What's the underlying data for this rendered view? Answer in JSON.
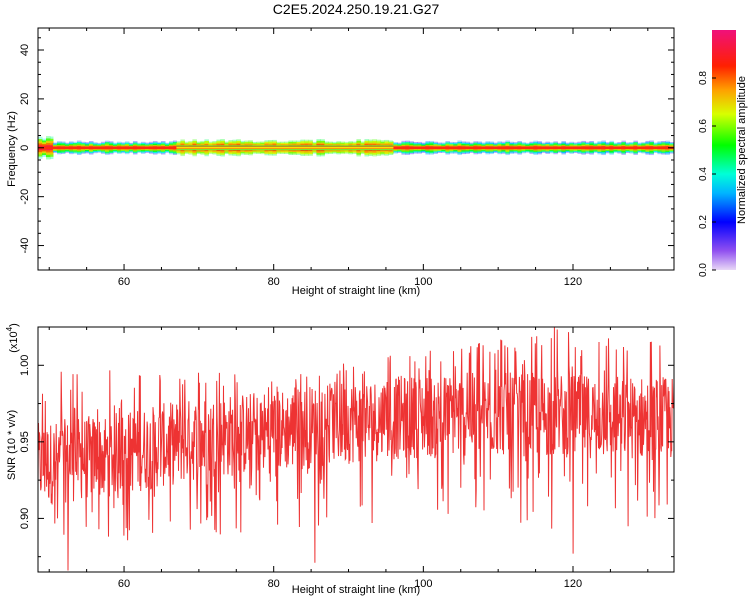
{
  "title": "C2E5.2024.250.19.21.G27",
  "colors": {
    "signal_red": "#ee3333",
    "axis": "#000000",
    "background": "#ffffff"
  },
  "chart_data": [
    {
      "type": "heatmap",
      "title": "C2E5.2024.250.19.21.G27",
      "xlabel": "Height of straight line (km)",
      "ylabel": "Frequency (Hz)",
      "xlim": [
        48.5,
        133.5
      ],
      "ylim": [
        -50,
        49
      ],
      "x_ticks": [
        "60",
        "80",
        "100",
        "120"
      ],
      "x_tick_values": [
        60,
        80,
        100,
        120
      ],
      "y_ticks": [
        "40",
        "20",
        "0",
        "-20",
        "-40"
      ],
      "y_tick_values": [
        40,
        20,
        0,
        -20,
        -40
      ],
      "grid": false,
      "colorbar": {
        "label": "Normalized spectral amplitude",
        "ticks": [
          "0.0",
          "0.2",
          "0.4",
          "0.6",
          "0.8"
        ],
        "tick_values": [
          0.0,
          0.2,
          0.4,
          0.6,
          0.8
        ],
        "range": [
          0,
          1
        ],
        "colormap": "rainbow (purple-blue-cyan-green-yellow-red-magenta)"
      },
      "ridge": {
        "frequency_hz": 0,
        "core_amplitude": 1.0,
        "band_segments": [
          {
            "x": [
              48.5,
              50.5
            ],
            "half_width_hz": 4.5,
            "amplitude": 0.7
          },
          {
            "x": [
              50.5,
              67
            ],
            "half_width_hz": 2.5,
            "amplitude": 0.95
          },
          {
            "x": [
              67,
              96
            ],
            "half_width_hz": 3.0,
            "amplitude": 0.6
          },
          {
            "x": [
              96,
              133.5
            ],
            "half_width_hz": 2.5,
            "amplitude": 0.95
          }
        ]
      }
    },
    {
      "type": "line",
      "xlabel": "Height of straight line (km)",
      "ylabel": "SNR (10 * v/v)",
      "y_multiplier": "(x10^4)",
      "multiplier_base": "x10",
      "multiplier_exp": "4",
      "xlim": [
        48.5,
        133.5
      ],
      "ylim": [
        0.865,
        1.025
      ],
      "x_ticks": [
        "60",
        "80",
        "100",
        "120"
      ],
      "x_tick_values": [
        60,
        80,
        100,
        120
      ],
      "y_ticks": [
        "1.00",
        "0.95",
        "0.90"
      ],
      "y_tick_values": [
        1.0,
        0.95,
        0.9
      ],
      "grid": false,
      "series": [
        {
          "color": "#ee3333",
          "x_start": 48.5,
          "x_end": 133.5,
          "trend_x": [
            48.5,
            60,
            70,
            80,
            90,
            100,
            110,
            120,
            133.5
          ],
          "trend_y": [
            0.935,
            0.943,
            0.952,
            0.957,
            0.963,
            0.967,
            0.968,
            0.967,
            0.965
          ],
          "envelope_max": [
            0.998,
            0.997,
            1.0,
            0.999,
            1.005,
            1.012,
            1.02,
            1.025,
            1.015
          ],
          "envelope_min": [
            0.875,
            0.884,
            0.888,
            0.89,
            0.895,
            0.899,
            0.9,
            0.89,
            0.888
          ],
          "notable_points": [
            {
              "x": 52.5,
              "y": 0.866
            },
            {
              "x": 85.5,
              "y": 0.871
            },
            {
              "x": 117.5,
              "y": 1.025
            },
            {
              "x": 120,
              "y": 0.877
            }
          ]
        }
      ]
    }
  ]
}
